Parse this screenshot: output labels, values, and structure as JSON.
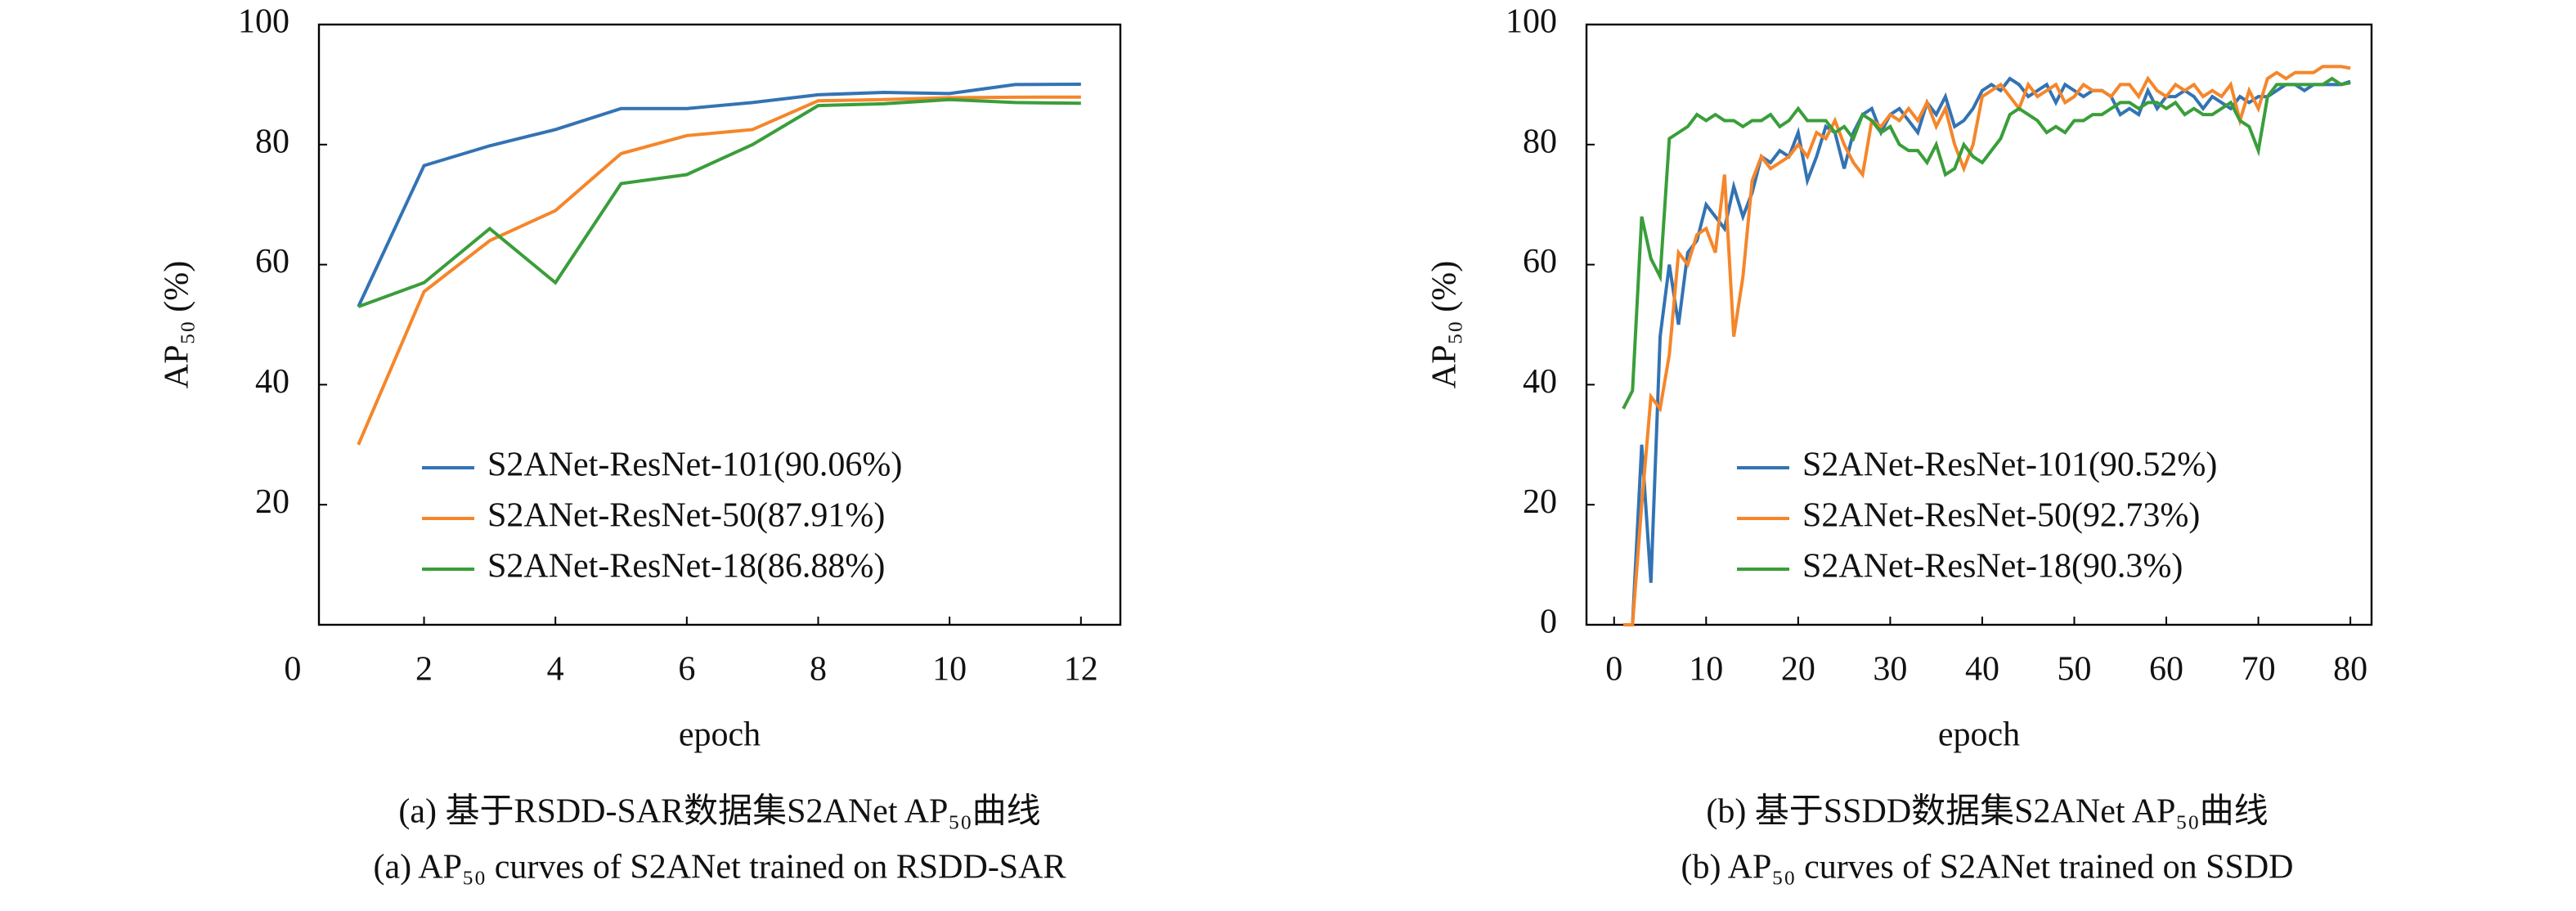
{
  "chart_data": [
    {
      "type": "line",
      "captions": [
        "(a) 基于RSDD-SAR数据集S2ANet AP₅₀曲线",
        "(a) AP₅₀ curves of S2ANet trained on RSDD-SAR"
      ],
      "x_label": "epoch",
      "y_label": "AP₅₀ (%)",
      "x": [
        1,
        2,
        3,
        4,
        5,
        6,
        7,
        8,
        9,
        10,
        11,
        12
      ],
      "xlim": [
        0.4,
        12.6
      ],
      "xticks": [
        0,
        2,
        4,
        6,
        8,
        10,
        12
      ],
      "ylim": [
        0,
        100
      ],
      "yticks": [
        20,
        40,
        60,
        80,
        100
      ],
      "series": [
        {
          "name": "S2ANet-ResNet-101(90.06%)",
          "color": "#3373b3",
          "values": [
            53,
            76.5,
            79.8,
            82.5,
            86,
            86,
            87,
            88.3,
            88.7,
            88.5,
            90,
            90.06
          ]
        },
        {
          "name": "S2ANet-ResNet-50(87.91%)",
          "color": "#f5862a",
          "values": [
            30,
            55.5,
            64,
            69,
            78.5,
            81.5,
            82.5,
            87.3,
            87.5,
            87.8,
            87.9,
            87.91
          ]
        },
        {
          "name": "S2ANet-ResNet-18(86.88%)",
          "color": "#3a9e3a",
          "values": [
            53,
            57,
            66,
            57,
            73.5,
            75,
            80,
            86.5,
            86.8,
            87.5,
            87,
            86.88
          ]
        }
      ]
    },
    {
      "type": "line",
      "captions": [
        "(b) 基于SSDD数据集S2ANet AP₅₀曲线",
        "(b) AP₅₀ curves of S2ANet trained on SSDD"
      ],
      "x_label": "epoch",
      "y_label": "AP₅₀ (%)",
      "x": [
        1,
        2,
        3,
        4,
        5,
        6,
        7,
        8,
        9,
        10,
        11,
        12,
        13,
        14,
        15,
        16,
        17,
        18,
        19,
        20,
        21,
        22,
        23,
        24,
        25,
        26,
        27,
        28,
        29,
        30,
        31,
        32,
        33,
        34,
        35,
        36,
        37,
        38,
        39,
        40,
        41,
        42,
        43,
        44,
        45,
        46,
        47,
        48,
        49,
        50,
        51,
        52,
        53,
        54,
        55,
        56,
        57,
        58,
        59,
        60,
        61,
        62,
        63,
        64,
        65,
        66,
        67,
        68,
        69,
        70,
        71,
        72,
        73,
        74,
        75,
        76,
        77,
        78,
        79,
        80
      ],
      "xlim": [
        -3,
        82.3
      ],
      "xticks": [
        0,
        10,
        20,
        30,
        40,
        50,
        60,
        70,
        80
      ],
      "ylim": [
        0,
        100
      ],
      "yticks": [
        0,
        20,
        40,
        60,
        80,
        100
      ],
      "series": [
        {
          "name": "S2ANet-ResNet-101(90.52%)",
          "color": "#3373b3",
          "values": [
            0,
            0,
            30,
            7,
            48,
            60,
            50,
            62,
            64,
            70,
            68,
            66,
            73,
            68,
            72,
            78,
            77,
            79,
            78,
            82,
            74,
            78,
            83,
            82,
            76,
            82,
            85,
            86,
            82,
            85,
            86,
            84,
            82,
            87,
            85,
            88,
            83,
            84,
            86,
            89,
            90,
            89,
            91,
            90,
            88,
            89,
            90,
            87,
            90,
            89,
            88,
            89,
            89,
            88,
            85,
            86,
            85,
            89,
            86,
            88,
            88,
            89,
            88,
            86,
            88,
            87,
            86,
            88,
            87,
            88,
            88,
            89,
            90,
            90,
            89,
            90,
            90,
            90,
            90,
            90.52
          ]
        },
        {
          "name": "S2ANet-ResNet-50(92.73%)",
          "color": "#f5862a",
          "values": [
            0,
            0,
            20,
            38,
            36,
            45,
            62,
            60,
            65,
            66,
            62,
            75,
            48,
            58,
            74,
            78,
            76,
            77,
            78,
            80,
            78,
            82,
            81,
            84,
            80,
            77,
            75,
            84,
            83,
            85,
            84,
            86,
            84,
            87,
            83,
            86,
            80,
            76,
            80,
            88,
            89,
            90,
            88,
            86,
            90,
            88,
            89,
            90,
            87,
            88,
            90,
            89,
            89,
            88,
            90,
            90,
            88,
            91,
            89,
            88,
            90,
            89,
            90,
            88,
            89,
            88,
            90,
            84,
            89,
            86,
            91,
            92,
            91,
            92,
            92,
            92,
            93,
            93,
            93,
            92.73
          ]
        },
        {
          "name": "S2ANet-ResNet-18(90.3%)",
          "color": "#3a9e3a",
          "values": [
            36,
            39,
            68,
            61,
            58,
            81,
            82,
            83,
            85,
            84,
            85,
            84,
            84,
            83,
            84,
            84,
            85,
            83,
            84,
            86,
            84,
            84,
            84,
            82,
            83,
            81,
            85,
            84,
            82,
            83,
            80,
            79,
            79,
            77,
            80,
            75,
            76,
            80,
            78,
            77,
            79,
            81,
            85,
            86,
            85,
            84,
            82,
            83,
            82,
            84,
            84,
            85,
            85,
            86,
            87,
            87,
            86,
            87,
            87,
            86,
            87,
            85,
            86,
            85,
            85,
            86,
            87,
            84,
            83,
            79,
            88,
            90,
            90,
            90,
            90,
            90,
            90,
            91,
            90,
            90.3
          ]
        }
      ]
    }
  ]
}
